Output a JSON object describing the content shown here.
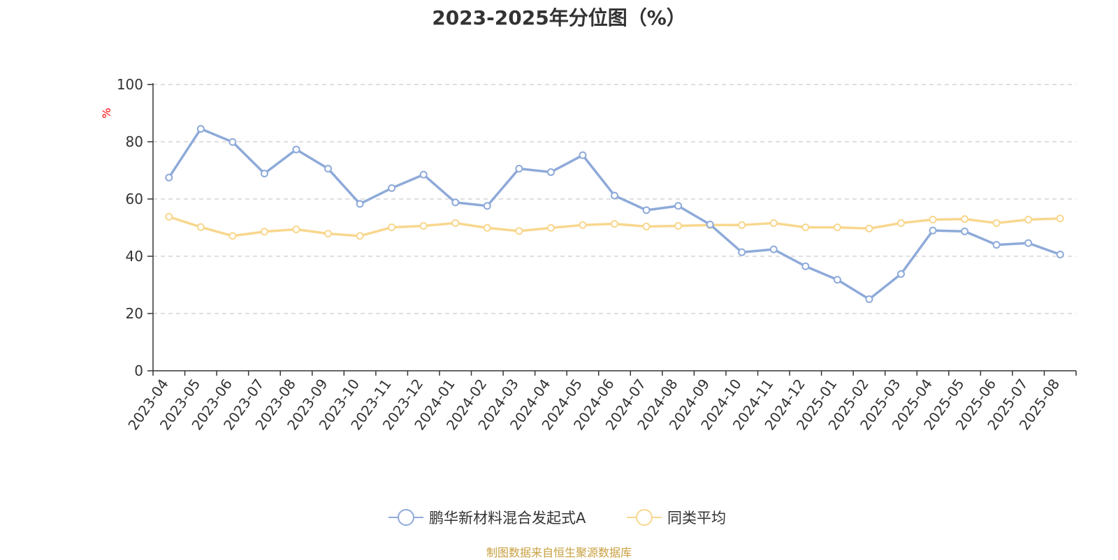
{
  "chart_data": {
    "type": "line",
    "title": "2023-2025年分位图（%）",
    "ylabel": "%",
    "ylim": [
      0,
      100
    ],
    "yticks": [
      0,
      20,
      40,
      60,
      80,
      100
    ],
    "grid": true,
    "legend_position": "bottom",
    "categories": [
      "2023-04",
      "2023-05",
      "2023-06",
      "2023-07",
      "2023-08",
      "2023-09",
      "2023-10",
      "2023-11",
      "2023-12",
      "2024-01",
      "2024-02",
      "2024-03",
      "2024-04",
      "2024-05",
      "2024-06",
      "2024-07",
      "2024-08",
      "2024-09",
      "2024-10",
      "2024-11",
      "2024-12",
      "2025-01",
      "2025-02",
      "2025-03",
      "2025-04",
      "2025-05",
      "2025-06",
      "2025-07",
      "2025-08"
    ],
    "series": [
      {
        "name": "鹏华新材料混合发起式A",
        "color": "#8eaad9",
        "values": [
          67.5,
          84.5,
          79.9,
          68.9,
          77.3,
          70.6,
          58.3,
          63.8,
          68.5,
          58.8,
          57.6,
          70.6,
          69.4,
          75.3,
          61.2,
          56.1,
          57.6,
          51.1,
          41.4,
          42.4,
          36.5,
          31.8,
          25.0,
          33.8,
          49.0,
          48.7,
          44.0,
          44.6,
          40.6
        ]
      },
      {
        "name": "同类平均",
        "color": "#f8d78e",
        "values": [
          53.8,
          50.2,
          47.1,
          48.6,
          49.4,
          47.9,
          47.1,
          50.1,
          50.6,
          51.6,
          49.9,
          48.8,
          49.9,
          50.9,
          51.3,
          50.4,
          50.6,
          50.9,
          50.9,
          51.6,
          50.1,
          50.1,
          49.7,
          51.6,
          52.8,
          53.0,
          51.6,
          52.8,
          53.2
        ]
      }
    ]
  },
  "source_note": "制图数据来自恒生聚源数据库"
}
